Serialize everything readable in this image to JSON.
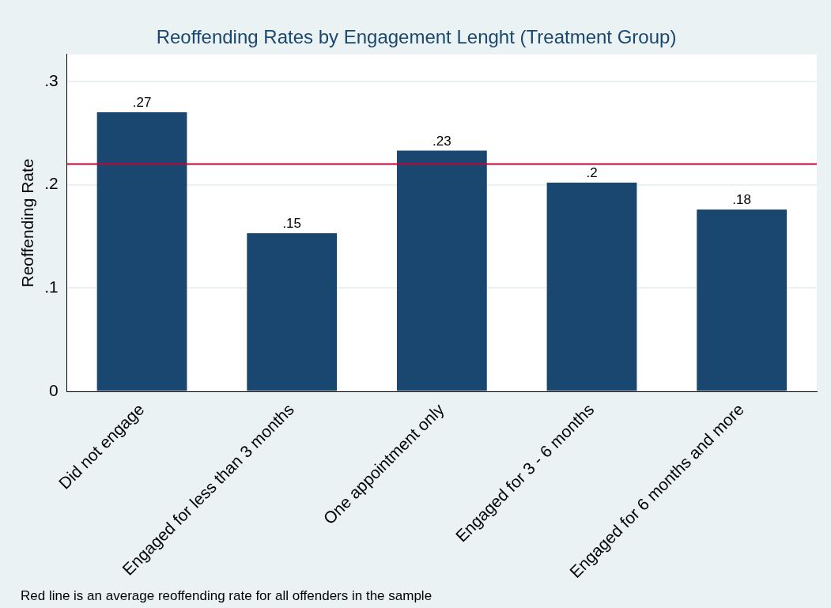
{
  "chart_data": {
    "type": "bar",
    "title": "Reoffending Rates by Engagement Lenght (Treatment Group)",
    "ylabel": "Reoffending Rate",
    "categories": [
      "Did not engage",
      "Engaged for less than 3 months",
      "One appointment only",
      "Engaged for 3 - 6 months",
      "Engaged for 6 months and more"
    ],
    "values": [
      0.27,
      0.153,
      0.233,
      0.202,
      0.176
    ],
    "value_labels": [
      ".27",
      ".15",
      ".23",
      ".2",
      ".18"
    ],
    "color": "#1a476f",
    "ylim": [
      0,
      0.326
    ],
    "yticks": [
      {
        "value": 0,
        "label": "0"
      },
      {
        "value": 0.1,
        "label": ".1"
      },
      {
        "value": 0.2,
        "label": ".2"
      },
      {
        "value": 0.3,
        "label": ".3"
      }
    ],
    "grid": "y",
    "legend": false,
    "ref_lines": [
      {
        "axis": "y",
        "value": 0.22,
        "color": "#c10534"
      }
    ],
    "annotations": [
      "Red line is an average reoffending rate for all offenders in the sample"
    ]
  }
}
